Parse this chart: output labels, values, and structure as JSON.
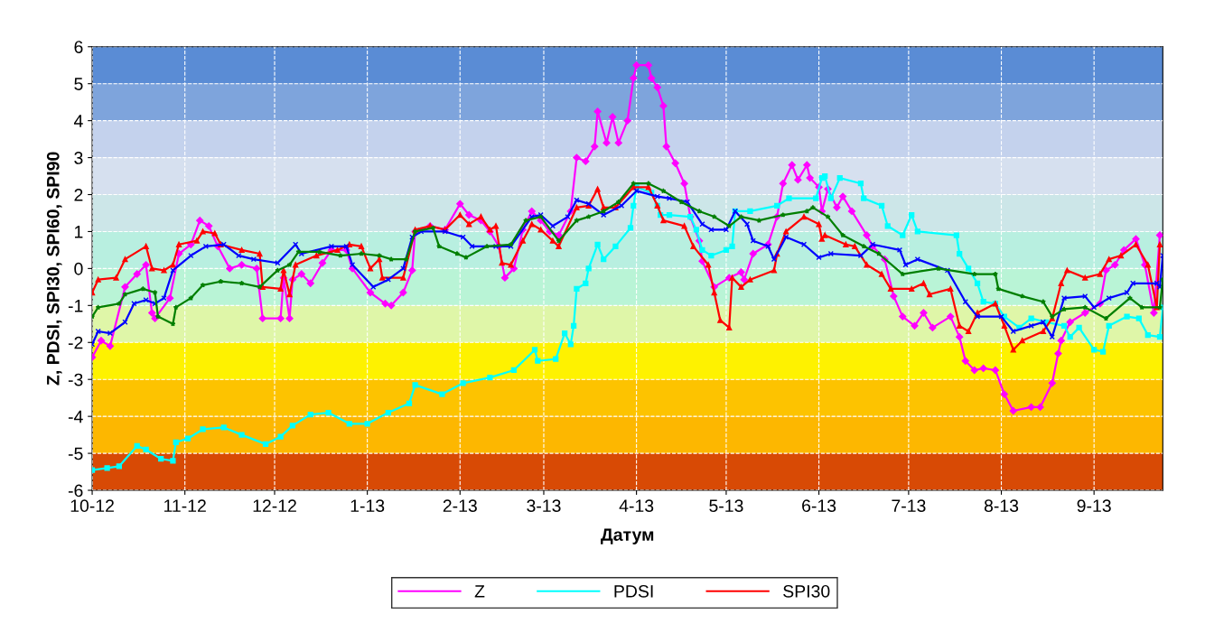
{
  "chart_data": {
    "type": "line",
    "xlabel": "Датум",
    "ylabel": "Z, PDSI, SPI30, SPI60, SPI90",
    "xlim": [
      "2012-10-01",
      "2013-09-24"
    ],
    "xticks": [
      {
        "value": "2012-10-01",
        "label": "10-12"
      },
      {
        "value": "2012-11-01",
        "label": "11-12"
      },
      {
        "value": "2012-12-01",
        "label": "12-12"
      },
      {
        "value": "2013-01-01",
        "label": "1-13"
      },
      {
        "value": "2013-02-01",
        "label": "2-13"
      },
      {
        "value": "2013-03-01",
        "label": "3-13"
      },
      {
        "value": "2013-04-01",
        "label": "4-13"
      },
      {
        "value": "2013-05-01",
        "label": "5-13"
      },
      {
        "value": "2013-06-01",
        "label": "6-13"
      },
      {
        "value": "2013-07-01",
        "label": "7-13"
      },
      {
        "value": "2013-08-01",
        "label": "8-13"
      },
      {
        "value": "2013-09-01",
        "label": "9-13"
      }
    ],
    "ylim": [
      -6,
      6
    ],
    "yticks": [
      -6,
      -5,
      -4,
      -3,
      -2,
      -1,
      0,
      1,
      2,
      3,
      4,
      5,
      6
    ],
    "grid": true,
    "legend": "bottom",
    "line_style": "solid",
    "bands": [
      {
        "axis": "y",
        "from": 5,
        "to": 6,
        "color": "#5a8cd5"
      },
      {
        "axis": "y",
        "from": 4,
        "to": 5,
        "color": "#7ea4dc"
      },
      {
        "axis": "y",
        "from": 3,
        "to": 4,
        "color": "#c4d2ed"
      },
      {
        "axis": "y",
        "from": 2,
        "to": 3,
        "color": "#d6e0ef"
      },
      {
        "axis": "y",
        "from": 1,
        "to": 2,
        "color": "#cce6e8"
      },
      {
        "axis": "y",
        "from": 0,
        "to": 1,
        "color": "#b8efe0"
      },
      {
        "axis": "y",
        "from": -1,
        "to": 0,
        "color": "#b9f4d6"
      },
      {
        "axis": "y",
        "from": -2,
        "to": -1,
        "color": "#dff6a8"
      },
      {
        "axis": "y",
        "from": -3,
        "to": -2,
        "color": "#fef200"
      },
      {
        "axis": "y",
        "from": -4,
        "to": -3,
        "color": "#fdc300"
      },
      {
        "axis": "y",
        "from": -5,
        "to": -4,
        "color": "#fdb700"
      },
      {
        "axis": "y",
        "from": -6,
        "to": -5,
        "color": "#d84a05"
      }
    ],
    "series": [
      {
        "name": "Z",
        "color": "#ff00ff",
        "marker": "diamond",
        "x": [
          "2012-10-01",
          "2012-10-04",
          "2012-10-07",
          "2012-10-12",
          "2012-10-16",
          "2012-10-19",
          "2012-10-21",
          "2012-10-22",
          "2012-10-27",
          "2012-10-30",
          "2012-11-03",
          "2012-11-06",
          "2012-11-09",
          "2012-11-12",
          "2012-11-16",
          "2012-11-20",
          "2012-11-25",
          "2012-11-27",
          "2012-12-03",
          "2012-12-04",
          "2012-12-06",
          "2012-12-07",
          "2012-12-10",
          "2012-12-13",
          "2012-12-17",
          "2012-12-20",
          "2012-12-25",
          "2012-12-27",
          "2013-01-02",
          "2013-01-07",
          "2013-01-09",
          "2013-01-13",
          "2013-01-16",
          "2013-01-17",
          "2013-01-22",
          "2013-01-27",
          "2013-02-01",
          "2013-02-04",
          "2013-02-08",
          "2013-02-11",
          "2013-02-14",
          "2013-02-16",
          "2013-02-19",
          "2013-02-22",
          "2013-02-25",
          "2013-02-28",
          "2013-03-03",
          "2013-03-06",
          "2013-03-10",
          "2013-03-12",
          "2013-03-15",
          "2013-03-18",
          "2013-03-19",
          "2013-03-22",
          "2013-03-24",
          "2013-03-26",
          "2013-03-29",
          "2013-03-31",
          "2013-04-01",
          "2013-04-05",
          "2013-04-06",
          "2013-04-08",
          "2013-04-10",
          "2013-04-11",
          "2013-04-14",
          "2013-04-17",
          "2013-04-19",
          "2013-04-22",
          "2013-04-23",
          "2013-04-27",
          "2013-05-02",
          "2013-05-06",
          "2013-05-07",
          "2013-05-10",
          "2013-05-15",
          "2013-05-18",
          "2013-05-20",
          "2013-05-23",
          "2013-05-25",
          "2013-05-28",
          "2013-05-29",
          "2013-06-01",
          "2013-06-02",
          "2013-06-04",
          "2013-06-07",
          "2013-06-09",
          "2013-06-12",
          "2013-06-17",
          "2013-06-19",
          "2013-06-23",
          "2013-06-26",
          "2013-06-29",
          "2013-07-03",
          "2013-07-06",
          "2013-07-09",
          "2013-07-15",
          "2013-07-18",
          "2013-07-20",
          "2013-07-23",
          "2013-07-26",
          "2013-07-30",
          "2013-08-02",
          "2013-08-05",
          "2013-08-11",
          "2013-08-14",
          "2013-08-18",
          "2013-08-20",
          "2013-08-21",
          "2013-08-24",
          "2013-08-29",
          "2013-09-03",
          "2013-09-05",
          "2013-09-08",
          "2013-09-11",
          "2013-09-15",
          "2013-09-18",
          "2013-09-21",
          "2013-09-23"
        ],
        "values": [
          -2.4,
          -1.95,
          -2.1,
          -0.5,
          -0.15,
          0.1,
          -1.2,
          -1.35,
          -0.8,
          0.4,
          0.65,
          1.3,
          1.15,
          0.6,
          0.0,
          0.1,
          0.0,
          -1.35,
          -1.35,
          -0.25,
          -1.35,
          -0.3,
          -0.15,
          -0.4,
          0.15,
          0.5,
          0.5,
          0.0,
          -0.65,
          -0.95,
          -1.0,
          -0.65,
          -0.05,
          1.0,
          1.15,
          1.05,
          1.75,
          1.45,
          1.3,
          1.0,
          0.6,
          -0.25,
          0.0,
          1.05,
          1.55,
          1.3,
          1.0,
          0.9,
          1.55,
          3.0,
          2.9,
          3.3,
          4.25,
          3.4,
          4.1,
          3.4,
          4.0,
          5.15,
          5.5,
          5.5,
          5.15,
          4.9,
          4.4,
          3.3,
          2.85,
          2.3,
          1.4,
          0.75,
          0.2,
          -0.5,
          -0.25,
          -0.1,
          -0.3,
          0.4,
          0.65,
          1.4,
          2.3,
          2.8,
          2.4,
          2.8,
          2.45,
          2.2,
          1.55,
          2.15,
          1.65,
          1.95,
          1.55,
          0.9,
          0.6,
          0.25,
          -0.75,
          -1.3,
          -1.55,
          -1.2,
          -1.6,
          -1.3,
          -1.85,
          -2.5,
          -2.75,
          -2.7,
          -2.75,
          -3.4,
          -3.85,
          -3.75,
          -3.75,
          -3.1,
          -2.3,
          -1.95,
          -1.45,
          -1.2,
          -0.95,
          -0.05,
          0.1,
          0.5,
          0.8,
          0.1,
          -1.2,
          0.9
        ]
      },
      {
        "name": "PDSI",
        "color": "#00ffff",
        "marker": "square",
        "x": [
          "2012-10-01",
          "2012-10-06",
          "2012-10-10",
          "2012-10-16",
          "2012-10-19",
          "2012-10-24",
          "2012-10-28",
          "2012-10-29",
          "2012-11-02",
          "2012-11-07",
          "2012-11-14",
          "2012-11-20",
          "2012-11-28",
          "2012-12-03",
          "2012-12-07",
          "2012-12-13",
          "2012-12-19",
          "2012-12-26",
          "2013-01-01",
          "2013-01-08",
          "2013-01-15",
          "2013-01-17",
          "2013-01-26",
          "2013-02-02",
          "2013-02-11",
          "2013-02-19",
          "2013-02-26",
          "2013-02-27",
          "2013-03-05",
          "2013-03-08",
          "2013-03-10",
          "2013-03-11",
          "2013-03-12",
          "2013-03-15",
          "2013-03-16",
          "2013-03-19",
          "2013-03-21",
          "2013-03-25",
          "2013-03-30",
          "2013-03-31",
          "2013-04-01",
          "2013-04-06",
          "2013-04-08",
          "2013-04-09",
          "2013-04-12",
          "2013-04-19",
          "2013-04-21",
          "2013-04-23",
          "2013-04-26",
          "2013-05-01",
          "2013-05-03",
          "2013-05-04",
          "2013-05-09",
          "2013-05-18",
          "2013-05-22",
          "2013-05-31",
          "2013-06-02",
          "2013-06-03",
          "2013-06-05",
          "2013-06-08",
          "2013-06-15",
          "2013-06-16",
          "2013-06-22",
          "2013-06-24",
          "2013-06-29",
          "2013-07-02",
          "2013-07-04",
          "2013-07-17",
          "2013-07-18",
          "2013-07-21",
          "2013-07-24",
          "2013-07-26",
          "2013-07-30",
          "2013-08-02",
          "2013-08-07",
          "2013-08-11",
          "2013-08-16",
          "2013-08-22",
          "2013-08-24",
          "2013-08-27",
          "2013-09-01",
          "2013-09-04",
          "2013-09-06",
          "2013-09-12",
          "2013-09-16",
          "2013-09-19",
          "2013-09-23",
          "2013-09-24"
        ],
        "values": [
          -5.45,
          -5.4,
          -5.35,
          -4.8,
          -4.9,
          -5.15,
          -5.2,
          -4.7,
          -4.6,
          -4.35,
          -4.3,
          -4.5,
          -4.75,
          -4.55,
          -4.25,
          -3.95,
          -3.9,
          -4.2,
          -4.2,
          -3.9,
          -3.65,
          -3.15,
          -3.4,
          -3.1,
          -2.95,
          -2.75,
          -2.2,
          -2.5,
          -2.45,
          -1.75,
          -2.05,
          -1.55,
          -0.55,
          -0.4,
          0.0,
          0.65,
          0.25,
          0.6,
          1.1,
          1.7,
          2.2,
          2.05,
          1.7,
          1.45,
          1.45,
          1.4,
          1.05,
          0.5,
          0.35,
          0.5,
          0.6,
          1.55,
          1.55,
          1.7,
          1.9,
          1.9,
          2.45,
          2.5,
          1.9,
          2.45,
          2.3,
          1.9,
          1.7,
          1.15,
          0.9,
          1.45,
          1.0,
          0.9,
          0.4,
          0.0,
          -0.4,
          -0.9,
          -0.95,
          -1.3,
          -1.6,
          -1.35,
          -1.45,
          -1.55,
          -1.85,
          -1.6,
          -2.2,
          -2.25,
          -1.55,
          -1.3,
          -1.35,
          -1.8,
          -1.85,
          -1.05
        ]
      },
      {
        "name": "SPI30",
        "color": "#ff0000",
        "marker": "triangle",
        "x": [
          "2012-10-01",
          "2012-10-03",
          "2012-10-09",
          "2012-10-12",
          "2012-10-19",
          "2012-10-21",
          "2012-10-25",
          "2012-10-28",
          "2012-10-30",
          "2012-11-05",
          "2012-11-07",
          "2012-11-11",
          "2012-11-13",
          "2012-11-20",
          "2012-11-26",
          "2012-11-27",
          "2012-12-03",
          "2012-12-04",
          "2012-12-06",
          "2012-12-08",
          "2012-12-15",
          "2012-12-22",
          "2012-12-26",
          "2012-12-30",
          "2013-01-02",
          "2013-01-05",
          "2013-01-06",
          "2013-01-13",
          "2013-01-17",
          "2013-01-22",
          "2013-01-27",
          "2013-02-01",
          "2013-02-04",
          "2013-02-08",
          "2013-02-11",
          "2013-02-13",
          "2013-02-15",
          "2013-02-18",
          "2013-02-22",
          "2013-02-25",
          "2013-02-28",
          "2013-03-04",
          "2013-03-06",
          "2013-03-12",
          "2013-03-16",
          "2013-03-19",
          "2013-03-21",
          "2013-03-25",
          "2013-03-31",
          "2013-04-05",
          "2013-04-08",
          "2013-04-10",
          "2013-04-17",
          "2013-04-20",
          "2013-04-25",
          "2013-04-27",
          "2013-04-29",
          "2013-05-02",
          "2013-05-03",
          "2013-05-06",
          "2013-05-09",
          "2013-05-17",
          "2013-05-18",
          "2013-05-21",
          "2013-05-27",
          "2013-06-01",
          "2013-06-02",
          "2013-06-03",
          "2013-06-10",
          "2013-06-13",
          "2013-06-17",
          "2013-06-22",
          "2013-06-25",
          "2013-07-02",
          "2013-07-06",
          "2013-07-08",
          "2013-07-15",
          "2013-07-18",
          "2013-07-21",
          "2013-07-24",
          "2013-07-30",
          "2013-08-02",
          "2013-08-05",
          "2013-08-08",
          "2013-08-15",
          "2013-08-18",
          "2013-08-21",
          "2013-08-23",
          "2013-08-29",
          "2013-09-03",
          "2013-09-06",
          "2013-09-10",
          "2013-09-15",
          "2013-09-19",
          "2013-09-22",
          "2013-09-23"
        ],
        "values": [
          -0.65,
          -0.3,
          -0.25,
          0.25,
          0.6,
          0.0,
          -0.05,
          0.1,
          0.65,
          0.75,
          1.0,
          0.95,
          0.65,
          0.5,
          0.4,
          -0.5,
          -0.55,
          -0.05,
          -0.7,
          0.1,
          0.35,
          0.5,
          0.65,
          0.6,
          0.0,
          0.25,
          -0.25,
          -0.25,
          1.05,
          1.15,
          1.05,
          1.45,
          1.2,
          1.4,
          1.05,
          1.15,
          0.15,
          0.1,
          0.75,
          1.2,
          1.05,
          0.75,
          0.6,
          1.65,
          1.7,
          2.15,
          1.65,
          1.65,
          2.2,
          2.2,
          1.7,
          1.3,
          1.15,
          0.6,
          0.1,
          -0.65,
          -1.4,
          -1.6,
          -0.25,
          -0.5,
          -0.3,
          -0.05,
          0.4,
          1.0,
          1.4,
          1.2,
          0.8,
          0.9,
          0.65,
          0.6,
          0.1,
          -0.15,
          -0.55,
          -0.55,
          -0.4,
          -0.7,
          -0.55,
          -1.55,
          -1.7,
          -1.2,
          -0.95,
          -1.55,
          -2.2,
          -1.95,
          -1.7,
          -1.35,
          -0.4,
          -0.05,
          -0.25,
          -0.15,
          0.25,
          0.35,
          0.65,
          0.1,
          -1.05,
          0.65
        ]
      },
      {
        "color": "#0000ff",
        "marker": "cross",
        "x": [
          "2012-10-01",
          "2012-10-03",
          "2012-10-07",
          "2012-10-12",
          "2012-10-15",
          "2012-10-19",
          "2012-10-22",
          "2012-10-25",
          "2012-10-28",
          "2012-11-03",
          "2012-11-08",
          "2012-11-14",
          "2012-11-19",
          "2012-11-24",
          "2012-12-02",
          "2012-12-08",
          "2012-12-10",
          "2012-12-20",
          "2012-12-25",
          "2012-12-27",
          "2013-01-03",
          "2013-01-08",
          "2013-01-13",
          "2013-01-16",
          "2013-01-19",
          "2013-01-27",
          "2013-02-02",
          "2013-02-05",
          "2013-02-13",
          "2013-02-18",
          "2013-02-25",
          "2013-02-28",
          "2013-03-04",
          "2013-03-09",
          "2013-03-12",
          "2013-03-16",
          "2013-03-21",
          "2013-03-27",
          "2013-04-01",
          "2013-04-08",
          "2013-04-12",
          "2013-04-18",
          "2013-04-23",
          "2013-04-26",
          "2013-05-01",
          "2013-05-04",
          "2013-05-08",
          "2013-05-10",
          "2013-05-15",
          "2013-05-17",
          "2013-05-21",
          "2013-05-27",
          "2013-06-01",
          "2013-06-05",
          "2013-06-15",
          "2013-06-19",
          "2013-06-28",
          "2013-06-30",
          "2013-07-04",
          "2013-07-14",
          "2013-07-20",
          "2013-07-24",
          "2013-08-01",
          "2013-08-05",
          "2013-08-11",
          "2013-08-15",
          "2013-08-18",
          "2013-08-22",
          "2013-08-29",
          "2013-09-01",
          "2013-09-06",
          "2013-09-12",
          "2013-09-14",
          "2013-09-22",
          "2013-09-23",
          "2013-09-24"
        ],
        "values": [
          -2.05,
          -1.7,
          -1.75,
          -1.45,
          -0.95,
          -0.85,
          -0.95,
          -0.8,
          -0.05,
          0.35,
          0.6,
          0.65,
          0.35,
          0.25,
          0.15,
          0.65,
          0.4,
          0.6,
          0.6,
          0.1,
          -0.5,
          -0.3,
          0.0,
          0.85,
          1.0,
          1.0,
          0.85,
          0.6,
          0.6,
          0.6,
          1.4,
          1.45,
          1.15,
          1.4,
          1.85,
          1.75,
          1.45,
          1.7,
          2.1,
          1.95,
          1.9,
          1.8,
          1.2,
          1.05,
          1.05,
          1.55,
          1.2,
          0.75,
          0.6,
          0.25,
          0.85,
          0.65,
          0.3,
          0.4,
          0.35,
          0.65,
          0.5,
          0.1,
          0.25,
          -0.05,
          -0.9,
          -1.3,
          -1.3,
          -1.7,
          -1.55,
          -1.45,
          -1.85,
          -0.8,
          -0.75,
          -1.05,
          -0.8,
          -0.65,
          -0.4,
          -0.4,
          -0.5,
          0.35
        ]
      },
      {
        "color": "#007f00",
        "marker": "star",
        "x": [
          "2012-10-01",
          "2012-10-03",
          "2012-10-10",
          "2012-10-12",
          "2012-10-18",
          "2012-10-22",
          "2012-10-23",
          "2012-10-28",
          "2012-10-29",
          "2012-11-03",
          "2012-11-07",
          "2012-11-13",
          "2012-11-20",
          "2012-11-26",
          "2012-12-02",
          "2012-12-06",
          "2012-12-09",
          "2012-12-16",
          "2012-12-23",
          "2012-12-30",
          "2013-01-05",
          "2013-01-09",
          "2013-01-14",
          "2013-01-17",
          "2013-01-23",
          "2013-01-25",
          "2013-01-31",
          "2013-02-03",
          "2013-02-10",
          "2013-02-18",
          "2013-02-23",
          "2013-02-28",
          "2013-03-06",
          "2013-03-12",
          "2013-03-16",
          "2013-03-21",
          "2013-03-26",
          "2013-03-31",
          "2013-04-05",
          "2013-04-10",
          "2013-04-16",
          "2013-04-22",
          "2013-04-27",
          "2013-05-02",
          "2013-05-06",
          "2013-05-12",
          "2013-05-20",
          "2013-05-28",
          "2013-05-30",
          "2013-06-04",
          "2013-06-09",
          "2013-06-16",
          "2013-06-21",
          "2013-06-29",
          "2013-07-11",
          "2013-07-23",
          "2013-07-30",
          "2013-07-31",
          "2013-08-08",
          "2013-08-15",
          "2013-08-18",
          "2013-08-22",
          "2013-08-29",
          "2013-09-05",
          "2013-09-13",
          "2013-09-17",
          "2013-09-23",
          "2013-09-24"
        ],
        "values": [
          -1.3,
          -1.05,
          -0.95,
          -0.7,
          -0.55,
          -0.65,
          -1.3,
          -1.5,
          -1.05,
          -0.8,
          -0.45,
          -0.35,
          -0.4,
          -0.5,
          -0.05,
          0.1,
          0.45,
          0.45,
          0.35,
          0.4,
          0.35,
          0.25,
          0.25,
          1.0,
          1.1,
          0.6,
          0.4,
          0.3,
          0.6,
          0.65,
          1.3,
          1.4,
          0.75,
          1.3,
          1.4,
          1.55,
          1.8,
          2.3,
          2.3,
          2.1,
          1.8,
          1.55,
          1.4,
          1.15,
          1.4,
          1.3,
          1.45,
          1.55,
          1.65,
          1.4,
          0.9,
          0.6,
          0.4,
          -0.15,
          0.0,
          -0.15,
          -0.15,
          -0.55,
          -0.75,
          -0.9,
          -1.3,
          -1.1,
          -1.05,
          -1.35,
          -0.8,
          -1.05,
          -1.05,
          -0.3
        ]
      }
    ]
  }
}
